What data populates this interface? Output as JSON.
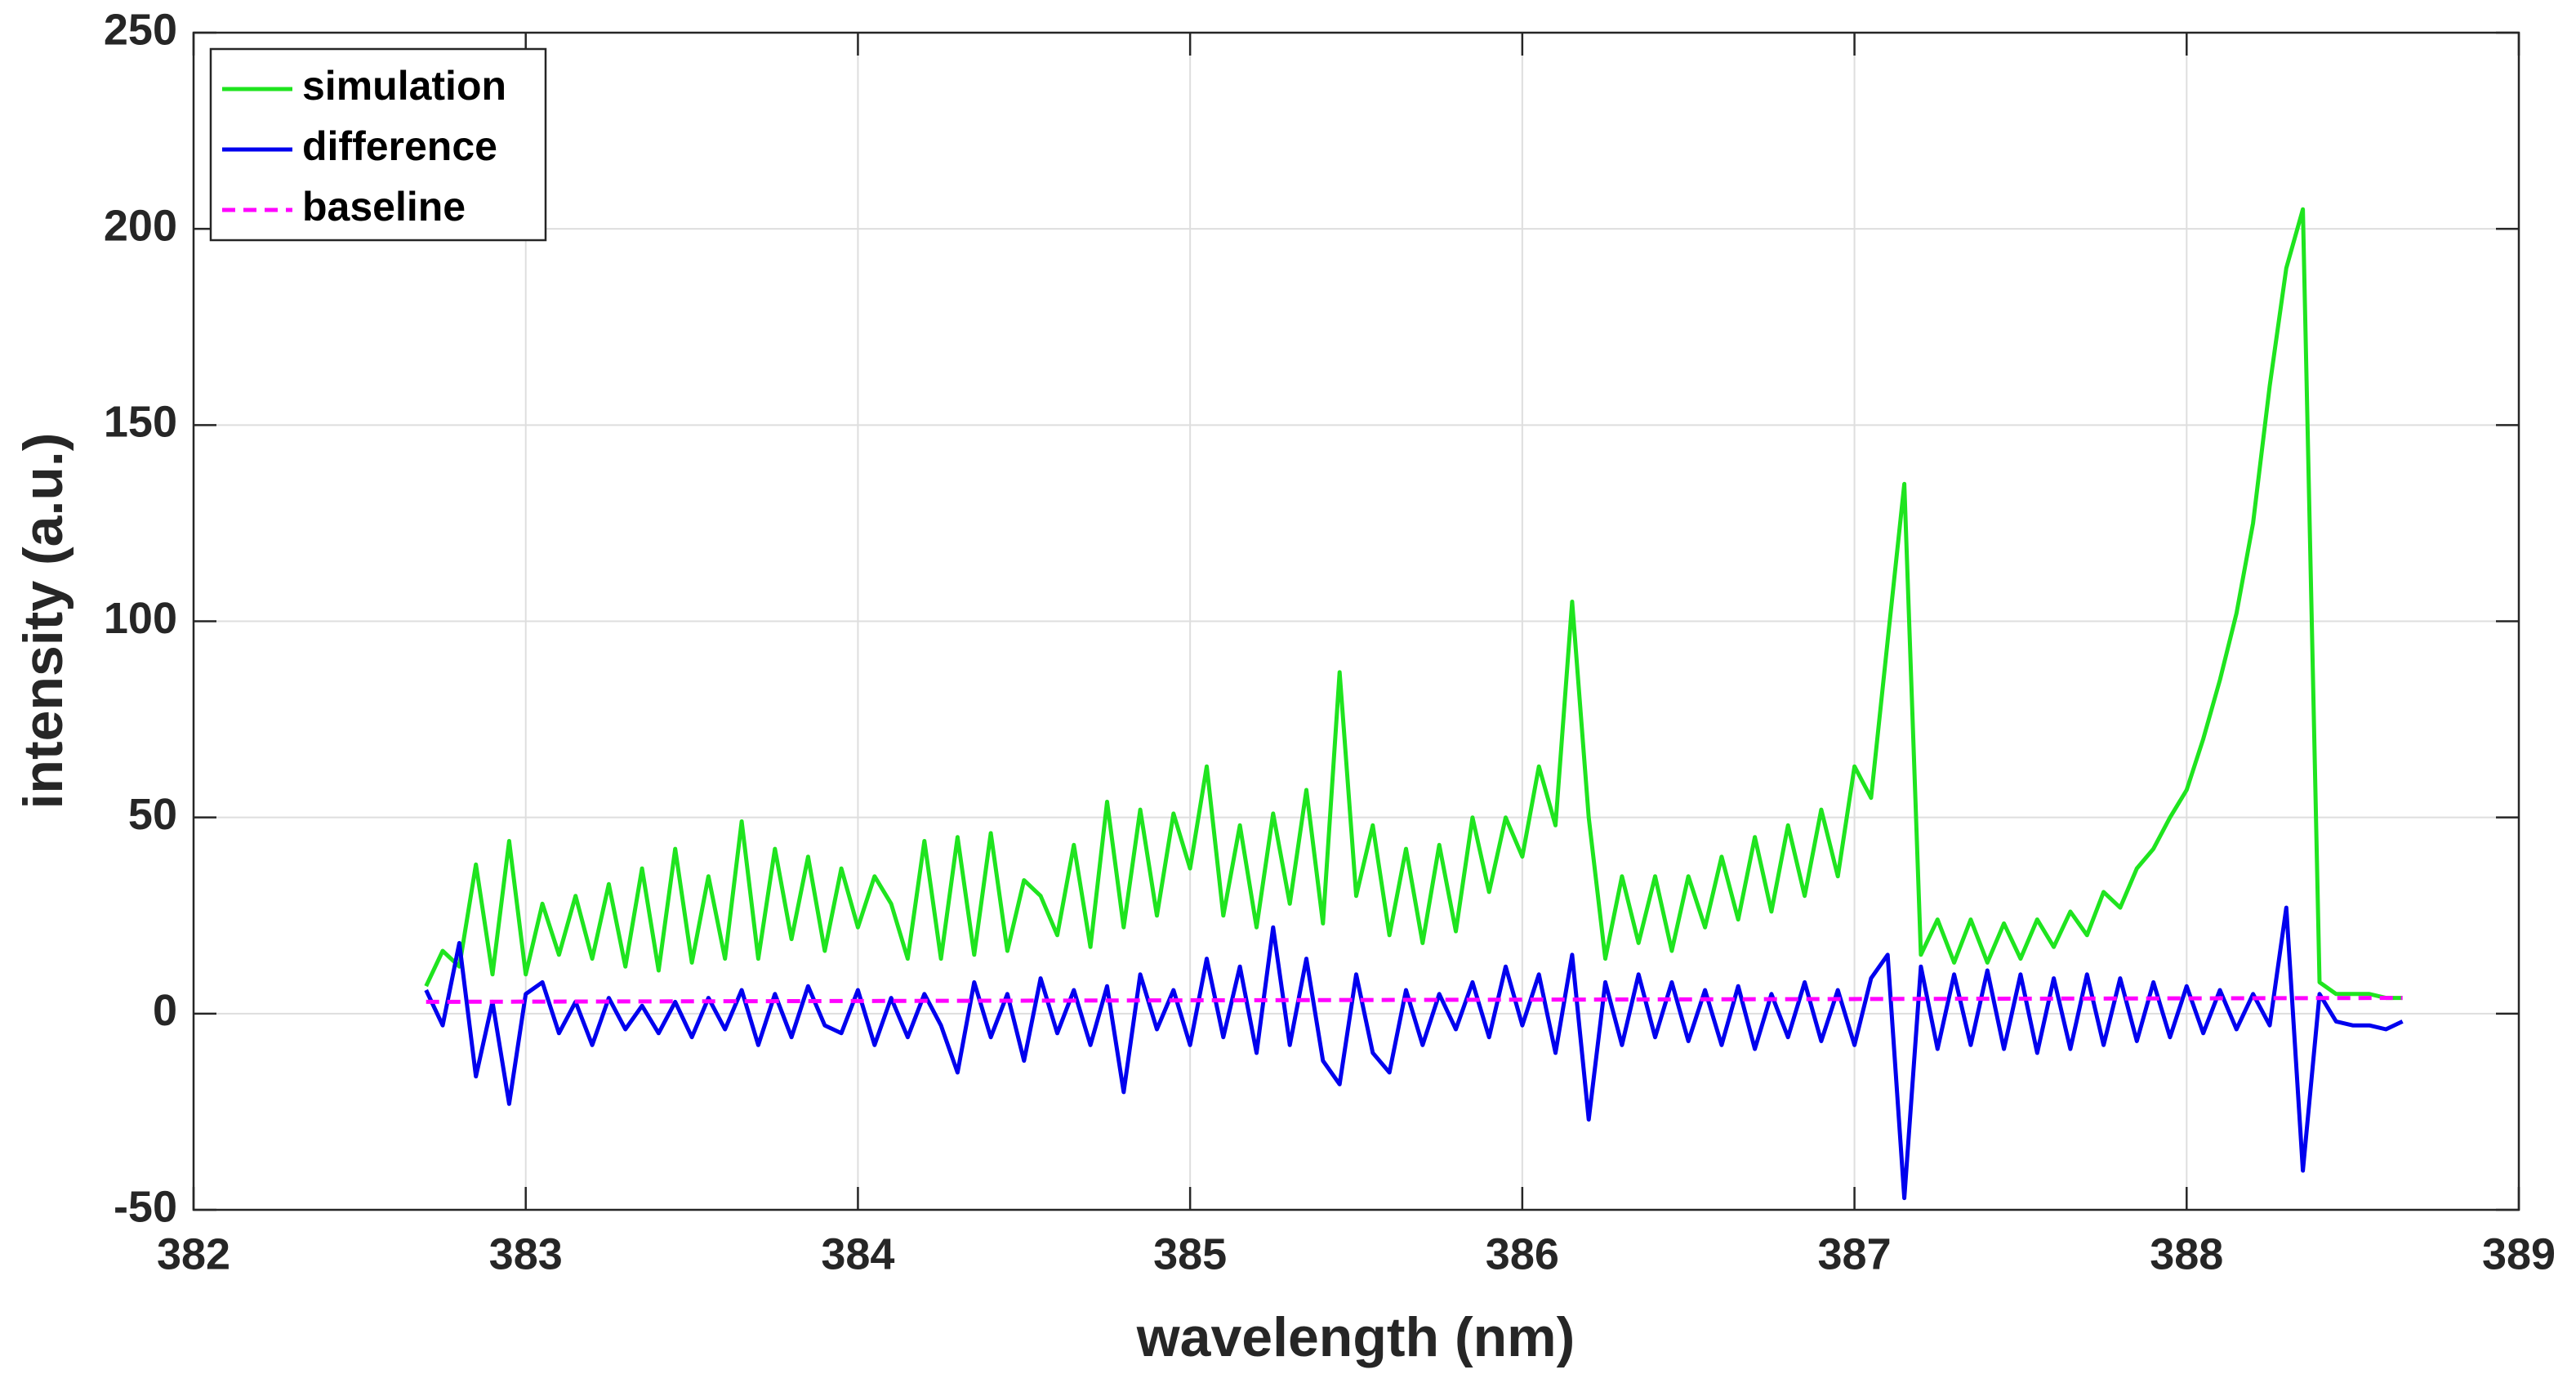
{
  "chart_data": {
    "type": "line",
    "xlabel": "wavelength (nm)",
    "ylabel": "intensity (a.u.)",
    "xlim": [
      382,
      389
    ],
    "ylim": [
      -50,
      250
    ],
    "xticks": [
      382,
      383,
      384,
      385,
      386,
      387,
      388,
      389
    ],
    "yticks": [
      -50,
      0,
      50,
      100,
      150,
      200,
      250
    ],
    "grid": true,
    "legend": "upper left",
    "x": [
      382.7,
      382.75,
      382.8,
      382.85,
      382.9,
      382.95,
      383,
      383.05,
      383.1,
      383.15,
      383.2,
      383.25,
      383.3,
      383.35,
      383.4,
      383.45,
      383.5,
      383.55,
      383.6,
      383.65,
      383.7,
      383.75,
      383.8,
      383.85,
      383.9,
      383.95,
      384,
      384.05,
      384.1,
      384.15,
      384.2,
      384.25,
      384.3,
      384.35,
      384.4,
      384.45,
      384.5,
      384.55,
      384.6,
      384.65,
      384.7,
      384.75,
      384.8,
      384.85,
      384.9,
      384.95,
      385,
      385.05,
      385.1,
      385.15,
      385.2,
      385.25,
      385.3,
      385.35,
      385.4,
      385.45,
      385.5,
      385.55,
      385.6,
      385.65,
      385.7,
      385.75,
      385.8,
      385.85,
      385.9,
      385.95,
      386,
      386.05,
      386.1,
      386.15,
      386.2,
      386.25,
      386.3,
      386.35,
      386.4,
      386.45,
      386.5,
      386.55,
      386.6,
      386.65,
      386.7,
      386.75,
      386.8,
      386.85,
      386.9,
      386.95,
      387,
      387.05,
      387.1,
      387.15,
      387.2,
      387.25,
      387.3,
      387.35,
      387.4,
      387.45,
      387.5,
      387.55,
      387.6,
      387.65,
      387.7,
      387.75,
      387.8,
      387.85,
      387.9,
      387.95,
      388,
      388.05,
      388.1,
      388.15,
      388.2,
      388.25,
      388.3,
      388.35,
      388.4,
      388.45,
      388.5,
      388.55,
      388.6,
      388.65
    ],
    "series": [
      {
        "name": "simulation",
        "color": "#1fe41f",
        "linestyle": "solid",
        "values": [
          7,
          16,
          12,
          38,
          10,
          44,
          10,
          28,
          15,
          30,
          14,
          33,
          12,
          37,
          11,
          42,
          13,
          35,
          14,
          49,
          14,
          42,
          19,
          40,
          16,
          37,
          22,
          35,
          28,
          14,
          44,
          14,
          45,
          15,
          46,
          16,
          34,
          30,
          20,
          43,
          17,
          54,
          22,
          52,
          25,
          51,
          37,
          63,
          25,
          48,
          22,
          51,
          28,
          57,
          23,
          87,
          30,
          48,
          20,
          42,
          18,
          43,
          21,
          50,
          31,
          50,
          40,
          63,
          48,
          105,
          50,
          14,
          35,
          18,
          35,
          16,
          35,
          22,
          40,
          24,
          45,
          26,
          48,
          30,
          52,
          35,
          63,
          55,
          95,
          135,
          15,
          24,
          13,
          24,
          13,
          23,
          14,
          24,
          17,
          26,
          20,
          31,
          27,
          37,
          42,
          50,
          57,
          70,
          85,
          102,
          125,
          160,
          190,
          205,
          8,
          5,
          5,
          5,
          4,
          4
        ]
      },
      {
        "name": "difference",
        "color": "#0000ee",
        "linestyle": "solid",
        "values": [
          6,
          -3,
          18,
          -16,
          3,
          -23,
          5,
          8,
          -5,
          3,
          -8,
          4,
          -4,
          2,
          -5,
          3,
          -6,
          4,
          -4,
          6,
          -8,
          5,
          -6,
          7,
          -3,
          -5,
          6,
          -8,
          4,
          -6,
          5,
          -3,
          -15,
          8,
          -6,
          5,
          -12,
          9,
          -5,
          6,
          -8,
          7,
          -20,
          10,
          -4,
          6,
          -8,
          14,
          -6,
          12,
          -10,
          22,
          -8,
          14,
          -12,
          -18,
          10,
          -10,
          -15,
          6,
          -8,
          5,
          -4,
          8,
          -6,
          12,
          -3,
          10,
          -10,
          15,
          -27,
          8,
          -8,
          10,
          -6,
          8,
          -7,
          6,
          -8,
          7,
          -9,
          5,
          -6,
          8,
          -7,
          6,
          -8,
          9,
          15,
          -47,
          12,
          -9,
          10,
          -8,
          11,
          -9,
          10,
          -10,
          9,
          -9,
          10,
          -8,
          9,
          -7,
          8,
          -6,
          7,
          -5,
          6,
          -4,
          5,
          -3,
          27,
          -40,
          5,
          -2,
          -3,
          -3,
          -4,
          -2
        ]
      },
      {
        "name": "baseline",
        "color": "#ff00ff",
        "linestyle": "dashed",
        "x": [
          382.7,
          388.65
        ],
        "values": [
          3,
          4
        ]
      }
    ]
  }
}
